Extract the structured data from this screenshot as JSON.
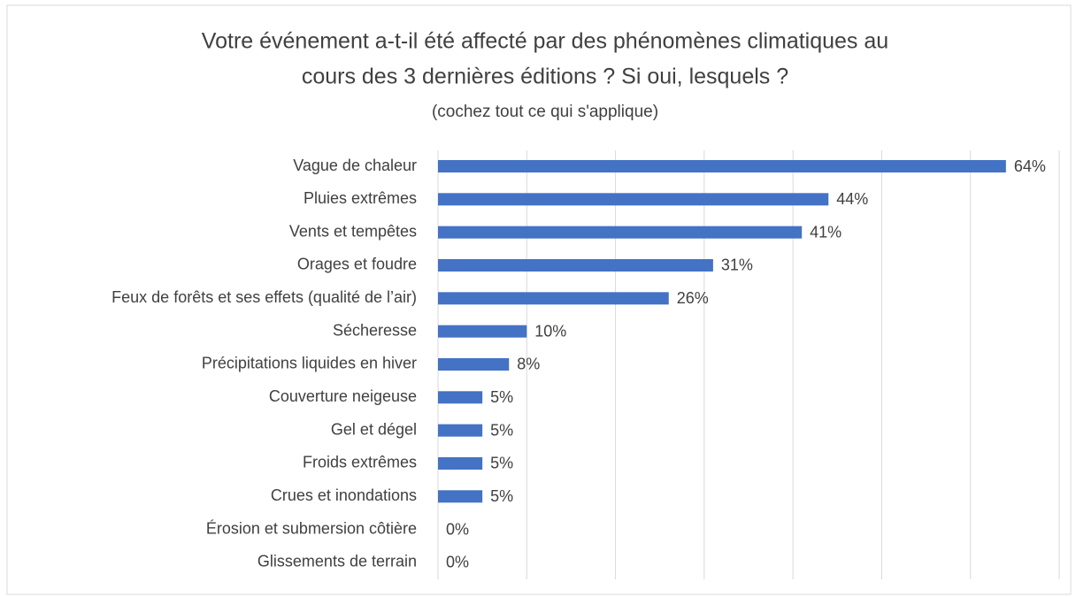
{
  "chart_data": {
    "type": "barh",
    "title": [
      "Votre événement a-t-il été affecté par des phénomènes climatiques au",
      "cours des 3 dernières éditions ? Si oui, lesquels ?"
    ],
    "subtitle": "(cochez tout ce qui s'applique)",
    "categories": [
      "Vague de chaleur",
      "Pluies extrêmes",
      "Vents et tempêtes",
      "Orages et foudre",
      "Feux de forêts et ses effets (qualité de l’air)",
      "Sécheresse",
      "Précipitations liquides en hiver",
      "Couverture neigeuse",
      "Gel et dégel",
      "Froids extrêmes",
      "Crues et inondations",
      "Érosion et submersion côtière",
      "Glissements de terrain"
    ],
    "values": [
      64,
      44,
      41,
      31,
      26,
      10,
      8,
      5,
      5,
      5,
      5,
      0,
      0
    ],
    "value_labels": [
      "64%",
      "44%",
      "41%",
      "31%",
      "26%",
      "10%",
      "8%",
      "5%",
      "5%",
      "5%",
      "5%",
      "0%",
      "0%"
    ],
    "color": "#4472c4",
    "xlim": [
      0,
      70
    ],
    "xticks": [
      0,
      10,
      20,
      30,
      40,
      50,
      60,
      70
    ],
    "grid": true
  }
}
